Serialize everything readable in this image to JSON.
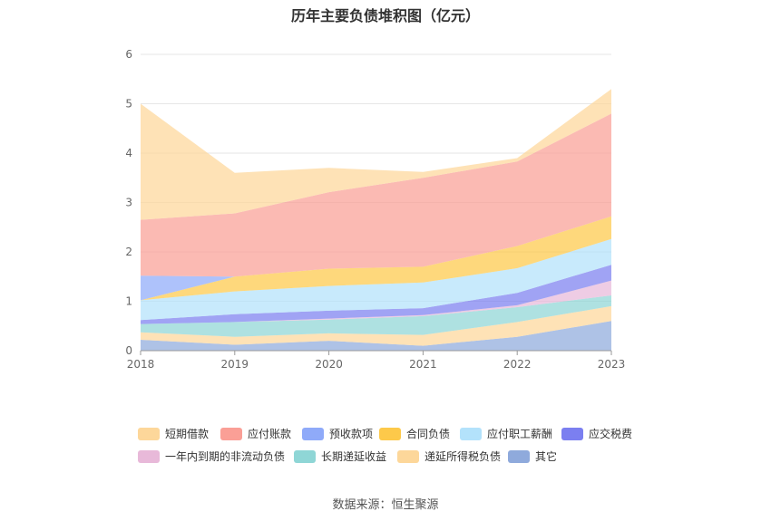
{
  "title": "历年主要负债堆积图（亿元）",
  "source": "数据来源：恒生聚源",
  "chart_data": {
    "type": "area",
    "stacked": true,
    "categories": [
      "2018",
      "2019",
      "2020",
      "2021",
      "2022",
      "2023"
    ],
    "ylim": [
      0,
      6
    ],
    "yticks": [
      "0",
      "1",
      "2",
      "3",
      "4",
      "5",
      "6"
    ],
    "grid": true,
    "legend_position": "bottom",
    "series": [
      {
        "name": "其它",
        "color": "#8faadc",
        "values": [
          0.22,
          0.12,
          0.2,
          0.1,
          0.28,
          0.6
        ]
      },
      {
        "name": "递延所得税负债",
        "color": "#fdd79a",
        "values": [
          0.15,
          0.16,
          0.15,
          0.22,
          0.3,
          0.3
        ]
      },
      {
        "name": "长期递延收益",
        "color": "#8fd6d6",
        "values": [
          0.17,
          0.3,
          0.28,
          0.38,
          0.3,
          0.22
        ]
      },
      {
        "name": "一年内到期的非流动负债",
        "color": "#e8b9d9",
        "values": [
          0.0,
          0.0,
          0.02,
          0.02,
          0.04,
          0.3
        ]
      },
      {
        "name": "应交税费",
        "color": "#7b7ff0",
        "values": [
          0.08,
          0.16,
          0.16,
          0.14,
          0.25,
          0.32
        ]
      },
      {
        "name": "应付职工薪酬",
        "color": "#b3e2fb",
        "values": [
          0.4,
          0.46,
          0.5,
          0.52,
          0.5,
          0.52
        ]
      },
      {
        "name": "合同负债",
        "color": "#fdc94a",
        "values": [
          0.0,
          0.3,
          0.35,
          0.32,
          0.45,
          0.46
        ]
      },
      {
        "name": "预收款项",
        "color": "#8faaf9",
        "values": [
          0.5,
          0.0,
          0.0,
          0.0,
          0.0,
          0.0
        ]
      },
      {
        "name": "应付账款",
        "color": "#fa9f96",
        "values": [
          1.13,
          1.28,
          1.55,
          1.8,
          1.71,
          2.08
        ]
      },
      {
        "name": "短期借款",
        "color": "#fdd79a",
        "values": [
          2.35,
          0.82,
          0.49,
          0.12,
          0.07,
          0.5
        ]
      }
    ],
    "legend_order": [
      "短期借款",
      "应付账款",
      "预收款项",
      "合同负债",
      "应付职工薪酬",
      "应交税费",
      "一年内到期的非流动负债",
      "长期递延收益",
      "递延所得税负债",
      "其它"
    ]
  }
}
